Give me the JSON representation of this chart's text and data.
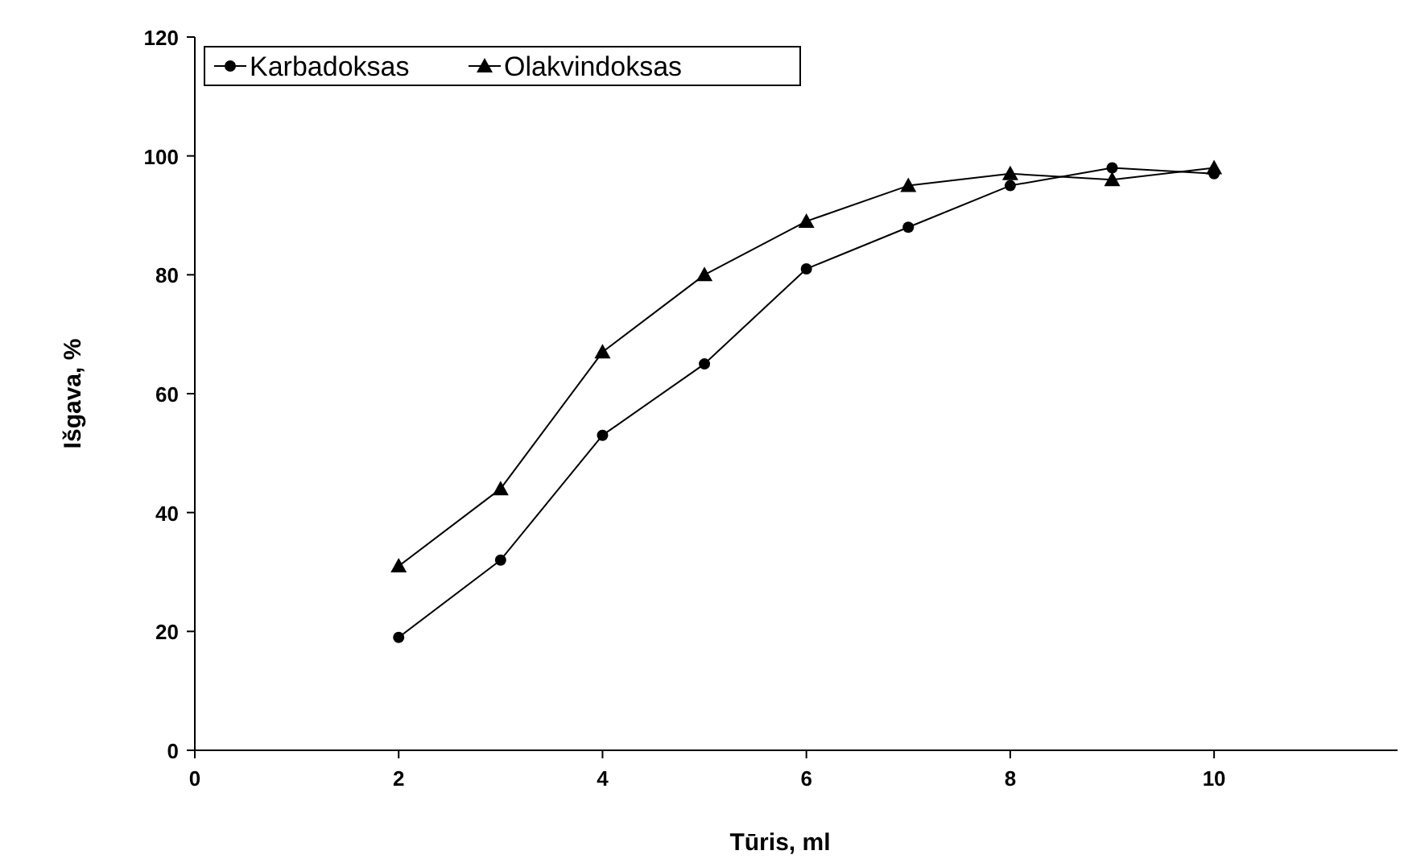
{
  "chart_data": {
    "type": "line",
    "xlabel": "Tūris, ml",
    "ylabel": "Išgava, %",
    "x": [
      2,
      3,
      4,
      5,
      6,
      7,
      8,
      9,
      10
    ],
    "series": [
      {
        "name": "Karbadoksas",
        "color": "#000000",
        "marker": "circle",
        "values": [
          19,
          32,
          53,
          65,
          81,
          88,
          95,
          98,
          97
        ]
      },
      {
        "name": "Olakvindoksas",
        "color": "#000000",
        "marker": "triangle",
        "values": [
          31,
          44,
          67,
          80,
          89,
          95,
          97,
          96,
          98
        ]
      }
    ],
    "xlim": [
      0,
      11.8
    ],
    "xticks": [
      0,
      2,
      4,
      6,
      8,
      10
    ],
    "ylim": [
      0,
      120
    ],
    "yticks": [
      0,
      20,
      40,
      60,
      80,
      100,
      120
    ],
    "grid": false,
    "legend": "top left",
    "line_style": "solid"
  }
}
